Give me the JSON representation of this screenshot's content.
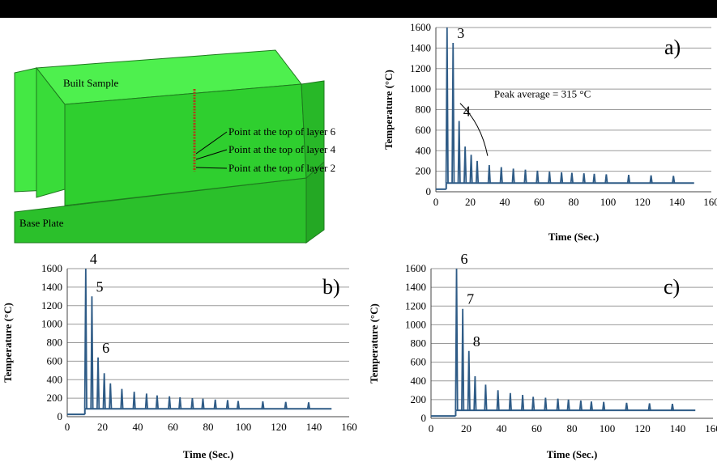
{
  "model": {
    "built_sample_label": "Built Sample",
    "base_plate_label": "Base Plate",
    "point_labels": [
      "Point at the top of layer 6",
      "Point at the top of layer 4",
      "Point at the top of layer 2"
    ],
    "colors": {
      "built": "#33e033",
      "base": "#2bc02b",
      "points": "#b03a18"
    }
  },
  "colors": {
    "series": "#2e5b86",
    "grid": "#9a9a9a"
  },
  "chart_data": [
    {
      "id": "a",
      "type": "line",
      "panel_label": "a)",
      "xlabel": "Time (Sec.)",
      "ylabel": "Temperature (°C)",
      "xlim": [
        0,
        160
      ],
      "ylim": [
        0,
        1600
      ],
      "xticks": [
        0,
        20,
        40,
        60,
        80,
        100,
        120,
        140,
        160
      ],
      "yticks": [
        0,
        200,
        400,
        600,
        800,
        1000,
        1200,
        1400,
        1600
      ],
      "grid": "horizontal",
      "baseline_start": 25,
      "baseline_end": 85,
      "onset_x": 6,
      "end_x": 150,
      "peaks": [
        {
          "x": 6.5,
          "y": 1600
        },
        {
          "x": 10,
          "y": 1450
        },
        {
          "x": 13.5,
          "y": 690
        },
        {
          "x": 17,
          "y": 440
        },
        {
          "x": 20.5,
          "y": 360
        },
        {
          "x": 24,
          "y": 300
        },
        {
          "x": 31,
          "y": 260
        },
        {
          "x": 38,
          "y": 240
        },
        {
          "x": 45,
          "y": 225
        },
        {
          "x": 52,
          "y": 215
        },
        {
          "x": 59,
          "y": 205
        },
        {
          "x": 66,
          "y": 195
        },
        {
          "x": 73,
          "y": 190
        },
        {
          "x": 79,
          "y": 185
        },
        {
          "x": 86,
          "y": 180
        },
        {
          "x": 92,
          "y": 175
        },
        {
          "x": 99,
          "y": 170
        },
        {
          "x": 112,
          "y": 165
        },
        {
          "x": 125,
          "y": 160
        },
        {
          "x": 138,
          "y": 155
        }
      ],
      "peak_labels": [
        {
          "text": "3",
          "x": 10,
          "y": 1450
        },
        {
          "text": "4",
          "x": 13.5,
          "y": 690
        }
      ],
      "annotation": {
        "text": "Peak average = 315 °C",
        "x": 31,
        "y": 350
      }
    },
    {
      "id": "b",
      "type": "line",
      "panel_label": "b)",
      "xlabel": "Time (Sec.)",
      "ylabel": "Temperature (°C)",
      "xlim": [
        0,
        160
      ],
      "ylim": [
        0,
        1600
      ],
      "xticks": [
        0,
        20,
        40,
        60,
        80,
        100,
        120,
        140,
        160
      ],
      "yticks": [
        0,
        200,
        400,
        600,
        800,
        1000,
        1200,
        1400,
        1600
      ],
      "grid": "horizontal",
      "baseline_start": 25,
      "baseline_end": 85,
      "onset_x": 10,
      "end_x": 150,
      "peaks": [
        {
          "x": 10.5,
          "y": 1600
        },
        {
          "x": 14,
          "y": 1300
        },
        {
          "x": 17.5,
          "y": 640
        },
        {
          "x": 21,
          "y": 470
        },
        {
          "x": 24.5,
          "y": 360
        },
        {
          "x": 31,
          "y": 300
        },
        {
          "x": 38,
          "y": 270
        },
        {
          "x": 45,
          "y": 250
        },
        {
          "x": 51,
          "y": 230
        },
        {
          "x": 58,
          "y": 220
        },
        {
          "x": 64,
          "y": 210
        },
        {
          "x": 71,
          "y": 200
        },
        {
          "x": 77,
          "y": 195
        },
        {
          "x": 84,
          "y": 185
        },
        {
          "x": 91,
          "y": 180
        },
        {
          "x": 97,
          "y": 170
        },
        {
          "x": 111,
          "y": 165
        },
        {
          "x": 124,
          "y": 160
        },
        {
          "x": 137,
          "y": 155
        }
      ],
      "peak_labels": [
        {
          "text": "4",
          "x": 10.5,
          "y": 1600
        },
        {
          "text": "5",
          "x": 14,
          "y": 1300
        },
        {
          "text": "6",
          "x": 17.5,
          "y": 640
        }
      ]
    },
    {
      "id": "c",
      "type": "line",
      "panel_label": "c)",
      "xlabel": "Time (Sec.)",
      "ylabel": "Temperature (°C)",
      "xlim": [
        0,
        160
      ],
      "ylim": [
        0,
        1600
      ],
      "xticks": [
        0,
        20,
        40,
        60,
        80,
        100,
        120,
        140,
        160
      ],
      "yticks": [
        0,
        200,
        400,
        600,
        800,
        1000,
        1200,
        1400,
        1600
      ],
      "grid": "horizontal",
      "baseline_start": 25,
      "baseline_end": 85,
      "onset_x": 14,
      "end_x": 150,
      "peaks": [
        {
          "x": 14.5,
          "y": 1600
        },
        {
          "x": 18,
          "y": 1170
        },
        {
          "x": 21.5,
          "y": 720
        },
        {
          "x": 25,
          "y": 450
        },
        {
          "x": 31,
          "y": 360
        },
        {
          "x": 38,
          "y": 300
        },
        {
          "x": 45,
          "y": 270
        },
        {
          "x": 52,
          "y": 250
        },
        {
          "x": 58,
          "y": 230
        },
        {
          "x": 65,
          "y": 220
        },
        {
          "x": 72,
          "y": 210
        },
        {
          "x": 78,
          "y": 200
        },
        {
          "x": 85,
          "y": 190
        },
        {
          "x": 91,
          "y": 180
        },
        {
          "x": 98,
          "y": 175
        },
        {
          "x": 111,
          "y": 165
        },
        {
          "x": 124,
          "y": 160
        },
        {
          "x": 137,
          "y": 155
        }
      ],
      "peak_labels": [
        {
          "text": "6",
          "x": 14.5,
          "y": 1600
        },
        {
          "text": "7",
          "x": 18,
          "y": 1170
        },
        {
          "text": "8",
          "x": 21.5,
          "y": 720
        }
      ]
    }
  ]
}
